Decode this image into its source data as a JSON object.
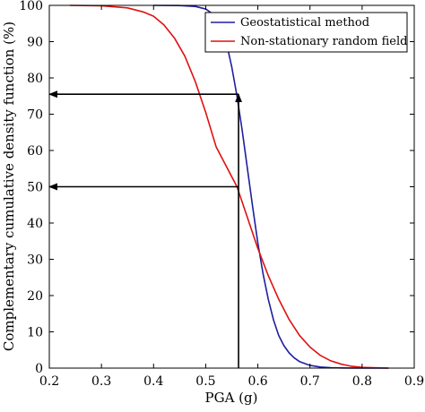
{
  "chart_data": {
    "type": "line",
    "xlabel": "PGA (g)",
    "ylabel": "Complementary cumulative density function (%)",
    "xlim": [
      0.2,
      0.9
    ],
    "ylim": [
      0,
      100
    ],
    "xticks": [
      "0.2",
      "0.3",
      "0.4",
      "0.5",
      "0.6",
      "0.7",
      "0.8",
      "0.9"
    ],
    "yticks": [
      "0",
      "10",
      "20",
      "30",
      "40",
      "50",
      "60",
      "70",
      "80",
      "90",
      "100"
    ],
    "grid": false,
    "legend_position": "top-right",
    "series": [
      {
        "name": "Geostatistical method",
        "color": "#1f1fa0",
        "x": [
          0.4,
          0.45,
          0.48,
          0.5,
          0.52,
          0.53,
          0.54,
          0.55,
          0.56,
          0.57,
          0.58,
          0.59,
          0.6,
          0.61,
          0.62,
          0.63,
          0.64,
          0.65,
          0.66,
          0.67,
          0.68,
          0.7,
          0.72,
          0.74,
          0.76,
          0.78,
          0.8,
          0.85
        ],
        "y": [
          100,
          99.95,
          99.7,
          99,
          97,
          94,
          89.5,
          83,
          75,
          65.5,
          55,
          44.5,
          34.5,
          26,
          19,
          13.3,
          9,
          6.2,
          4.2,
          2.8,
          1.8,
          0.75,
          0.3,
          0.12,
          0.05,
          0.02,
          0,
          0
        ]
      },
      {
        "name": "Non-stationary random field",
        "color": "#e01010",
        "x": [
          0.24,
          0.3,
          0.35,
          0.38,
          0.4,
          0.42,
          0.44,
          0.46,
          0.48,
          0.5,
          0.52,
          0.54,
          0.56,
          0.58,
          0.6,
          0.62,
          0.64,
          0.66,
          0.68,
          0.7,
          0.72,
          0.74,
          0.76,
          0.78,
          0.8,
          0.85
        ],
        "y": [
          100,
          99.9,
          99.3,
          98.2,
          97,
          94.6,
          91,
          86,
          79,
          70.5,
          61,
          55.5,
          50,
          41.5,
          33,
          25.5,
          19,
          13.4,
          9,
          5.8,
          3.5,
          2,
          1.1,
          0.5,
          0.2,
          0
        ]
      }
    ],
    "annotations": [
      {
        "type": "arrow",
        "x1": 0.563,
        "y1": 0,
        "x2": 0.563,
        "y2": 75.5
      },
      {
        "type": "arrow",
        "x1": 0.563,
        "y1": 75.5,
        "x2": 0.2,
        "y2": 75.5
      },
      {
        "type": "arrow",
        "x1": 0.563,
        "y1": 50,
        "x2": 0.2,
        "y2": 50
      }
    ]
  }
}
